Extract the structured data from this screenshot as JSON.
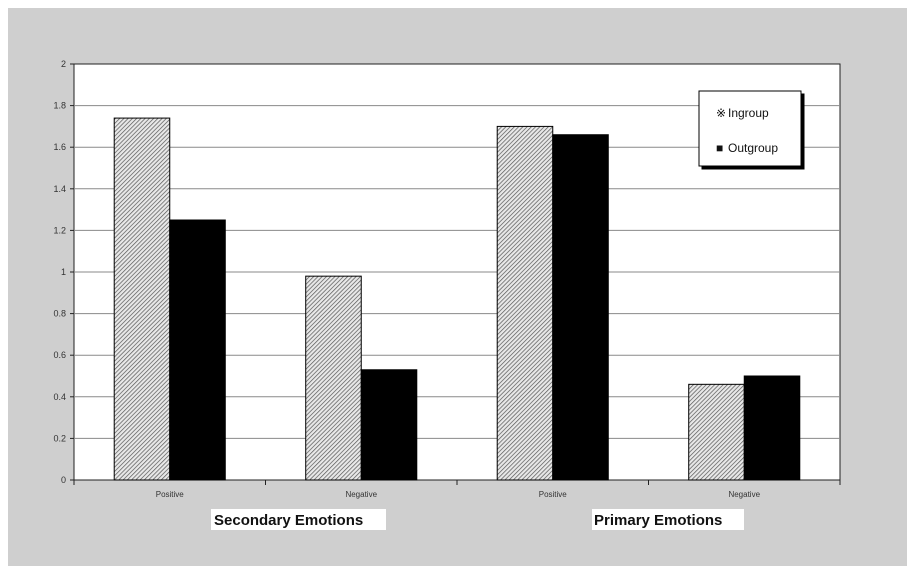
{
  "chart_data": {
    "type": "bar",
    "categories": [
      "Positive",
      "Negative",
      "Positive",
      "Negative"
    ],
    "groups": [
      {
        "label": "Secondary Emotions",
        "categories": [
          "Positive",
          "Negative"
        ]
      },
      {
        "label": "Primary Emotions",
        "categories": [
          "Positive",
          "Negative"
        ]
      }
    ],
    "series": [
      {
        "name": "Ingroup",
        "values": [
          1.74,
          0.98,
          1.7,
          0.46
        ],
        "fill": "hatched-gray"
      },
      {
        "name": "Outgroup",
        "values": [
          1.25,
          0.53,
          1.66,
          0.5
        ],
        "fill": "#000000"
      }
    ],
    "ylim": [
      0,
      2
    ],
    "yticks": [
      "0",
      "0.2",
      "0.4",
      "0.6",
      "0.8",
      "1",
      "1.2",
      "1.4",
      "1.6",
      "1.8",
      "2"
    ],
    "grid": true,
    "legend_position": "top-right",
    "legend_markers": [
      "※",
      "■"
    ],
    "colors": {
      "frame": "#cfcfcf",
      "plot": "#ffffff",
      "grid": "#8a8a8a",
      "outgroup": "#000000",
      "hatch_light": "#e8e8e8",
      "hatch_dark": "#555555"
    }
  }
}
